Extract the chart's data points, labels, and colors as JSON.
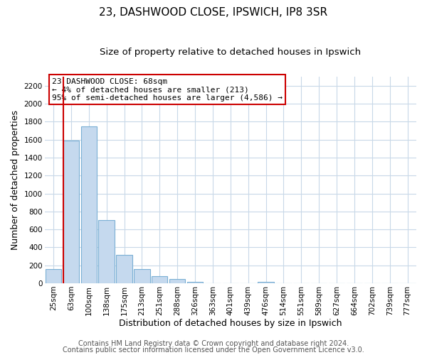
{
  "title": "23, DASHWOOD CLOSE, IPSWICH, IP8 3SR",
  "subtitle": "Size of property relative to detached houses in Ipswich",
  "xlabel": "Distribution of detached houses by size in Ipswich",
  "ylabel": "Number of detached properties",
  "bar_labels": [
    "25sqm",
    "63sqm",
    "100sqm",
    "138sqm",
    "175sqm",
    "213sqm",
    "251sqm",
    "288sqm",
    "326sqm",
    "363sqm",
    "401sqm",
    "439sqm",
    "476sqm",
    "514sqm",
    "551sqm",
    "589sqm",
    "627sqm",
    "664sqm",
    "702sqm",
    "739sqm",
    "777sqm"
  ],
  "bar_values": [
    160,
    1590,
    1750,
    700,
    315,
    155,
    80,
    45,
    20,
    0,
    0,
    0,
    15,
    0,
    0,
    0,
    0,
    0,
    0,
    0,
    0
  ],
  "bar_color": "#c5d9ee",
  "bar_edge_color": "#7aafd4",
  "vline_x_index": 1,
  "vline_color": "#cc0000",
  "ylim": [
    0,
    2300
  ],
  "yticks": [
    0,
    200,
    400,
    600,
    800,
    1000,
    1200,
    1400,
    1600,
    1800,
    2000,
    2200
  ],
  "annotation_lines": [
    "23 DASHWOOD CLOSE: 68sqm",
    "← 4% of detached houses are smaller (213)",
    "95% of semi-detached houses are larger (4,586) →"
  ],
  "footer_lines": [
    "Contains HM Land Registry data © Crown copyright and database right 2024.",
    "Contains public sector information licensed under the Open Government Licence v3.0."
  ],
  "background_color": "#ffffff",
  "grid_color": "#c8d8e8",
  "title_fontsize": 11,
  "subtitle_fontsize": 9.5,
  "axis_label_fontsize": 9,
  "tick_fontsize": 7.5,
  "annotation_fontsize": 8,
  "footer_fontsize": 7
}
